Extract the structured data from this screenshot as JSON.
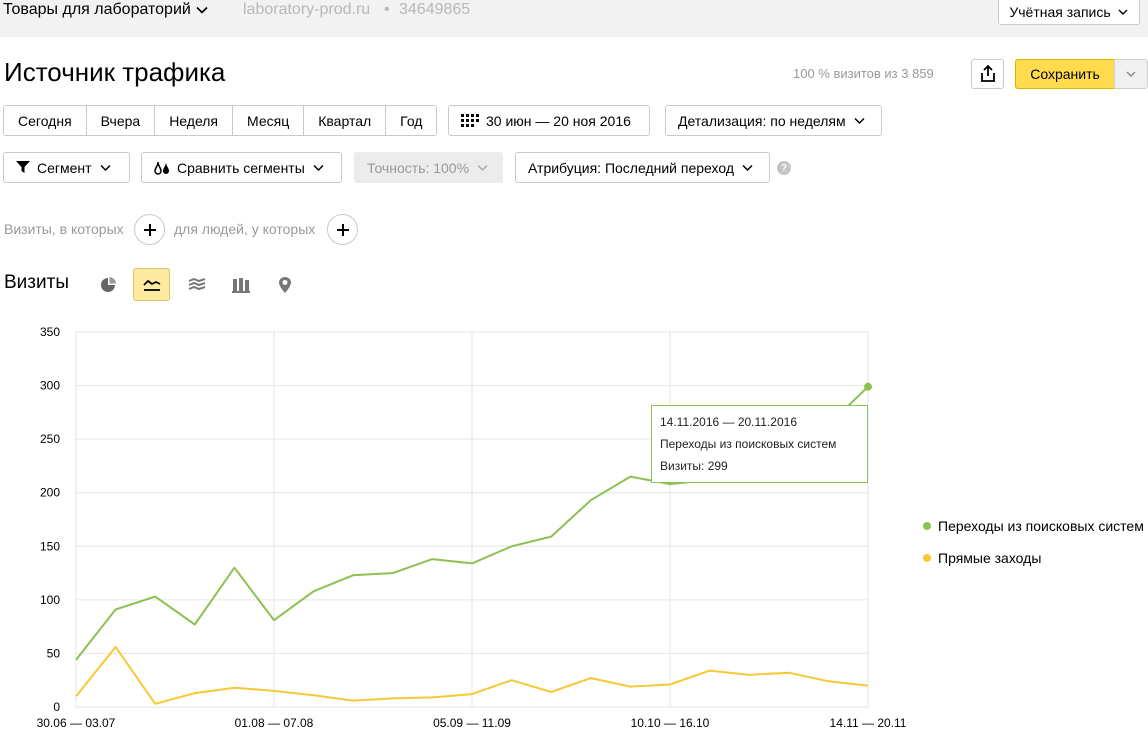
{
  "header": {
    "counter_name": "Товары для лабораторий",
    "site": "laboratory-prod.ru",
    "separator": "•",
    "counter_id": "34649865",
    "account_label": "Учётная запись"
  },
  "report": {
    "title": "Источник трафика",
    "visits_summary": "100 % визитов из 3 859",
    "save_label": "Сохранить",
    "share_icon": "share-icon"
  },
  "periods": [
    "Сегодня",
    "Вчера",
    "Неделя",
    "Месяц",
    "Квартал",
    "Год"
  ],
  "date_range": "30 июн — 20 ноя 2016",
  "detalization": "Детализация: по неделям",
  "segment_label": "Сегмент",
  "compare_label": "Сравнить сегменты",
  "accuracy_label": "Точность: 100%",
  "attribution_label": "Атрибуция: Последний переход",
  "help_symbol": "?",
  "filters": {
    "visits_where": "Визиты, в которых",
    "people_where": "для людей, у которых"
  },
  "chart_section": {
    "title": "Визиты",
    "chart_types": [
      "pie-chart-icon",
      "line-chart-icon",
      "area-chart-icon",
      "bar-chart-icon",
      "map-icon"
    ],
    "active_type": "line-chart-icon"
  },
  "tooltip": {
    "period": "14.11.2016 — 20.11.2016",
    "series": "Переходы из поисковых систем",
    "value": "Визиты: 299"
  },
  "colors": {
    "search": "#8cc152",
    "direct": "#f7c935",
    "grid": "#e6e6e6",
    "accent": "#ffdb4d"
  },
  "chart_data": {
    "type": "line",
    "x_labels": [
      "30.06 — 03.07",
      "01.08 — 07.08",
      "05.09 — 11.09",
      "10.10 — 16.10",
      "14.11 — 20.11"
    ],
    "ylim": [
      0,
      350
    ],
    "y_ticks": [
      0,
      50,
      100,
      150,
      200,
      250,
      300,
      350
    ],
    "grid": true,
    "legend_position": "right",
    "series": [
      {
        "name": "Переходы из поисковых систем",
        "color": "#8cc152",
        "values": [
          44,
          91,
          103,
          77,
          130,
          81,
          108,
          123,
          125,
          138,
          134,
          150,
          159,
          193,
          215,
          208,
          212,
          220,
          240,
          263,
          299
        ]
      },
      {
        "name": "Прямые заходы",
        "color": "#f7c935",
        "values": [
          10,
          56,
          3,
          13,
          18,
          15,
          11,
          6,
          8,
          9,
          12,
          25,
          14,
          27,
          19,
          21,
          34,
          30,
          32,
          24,
          20
        ]
      }
    ]
  }
}
